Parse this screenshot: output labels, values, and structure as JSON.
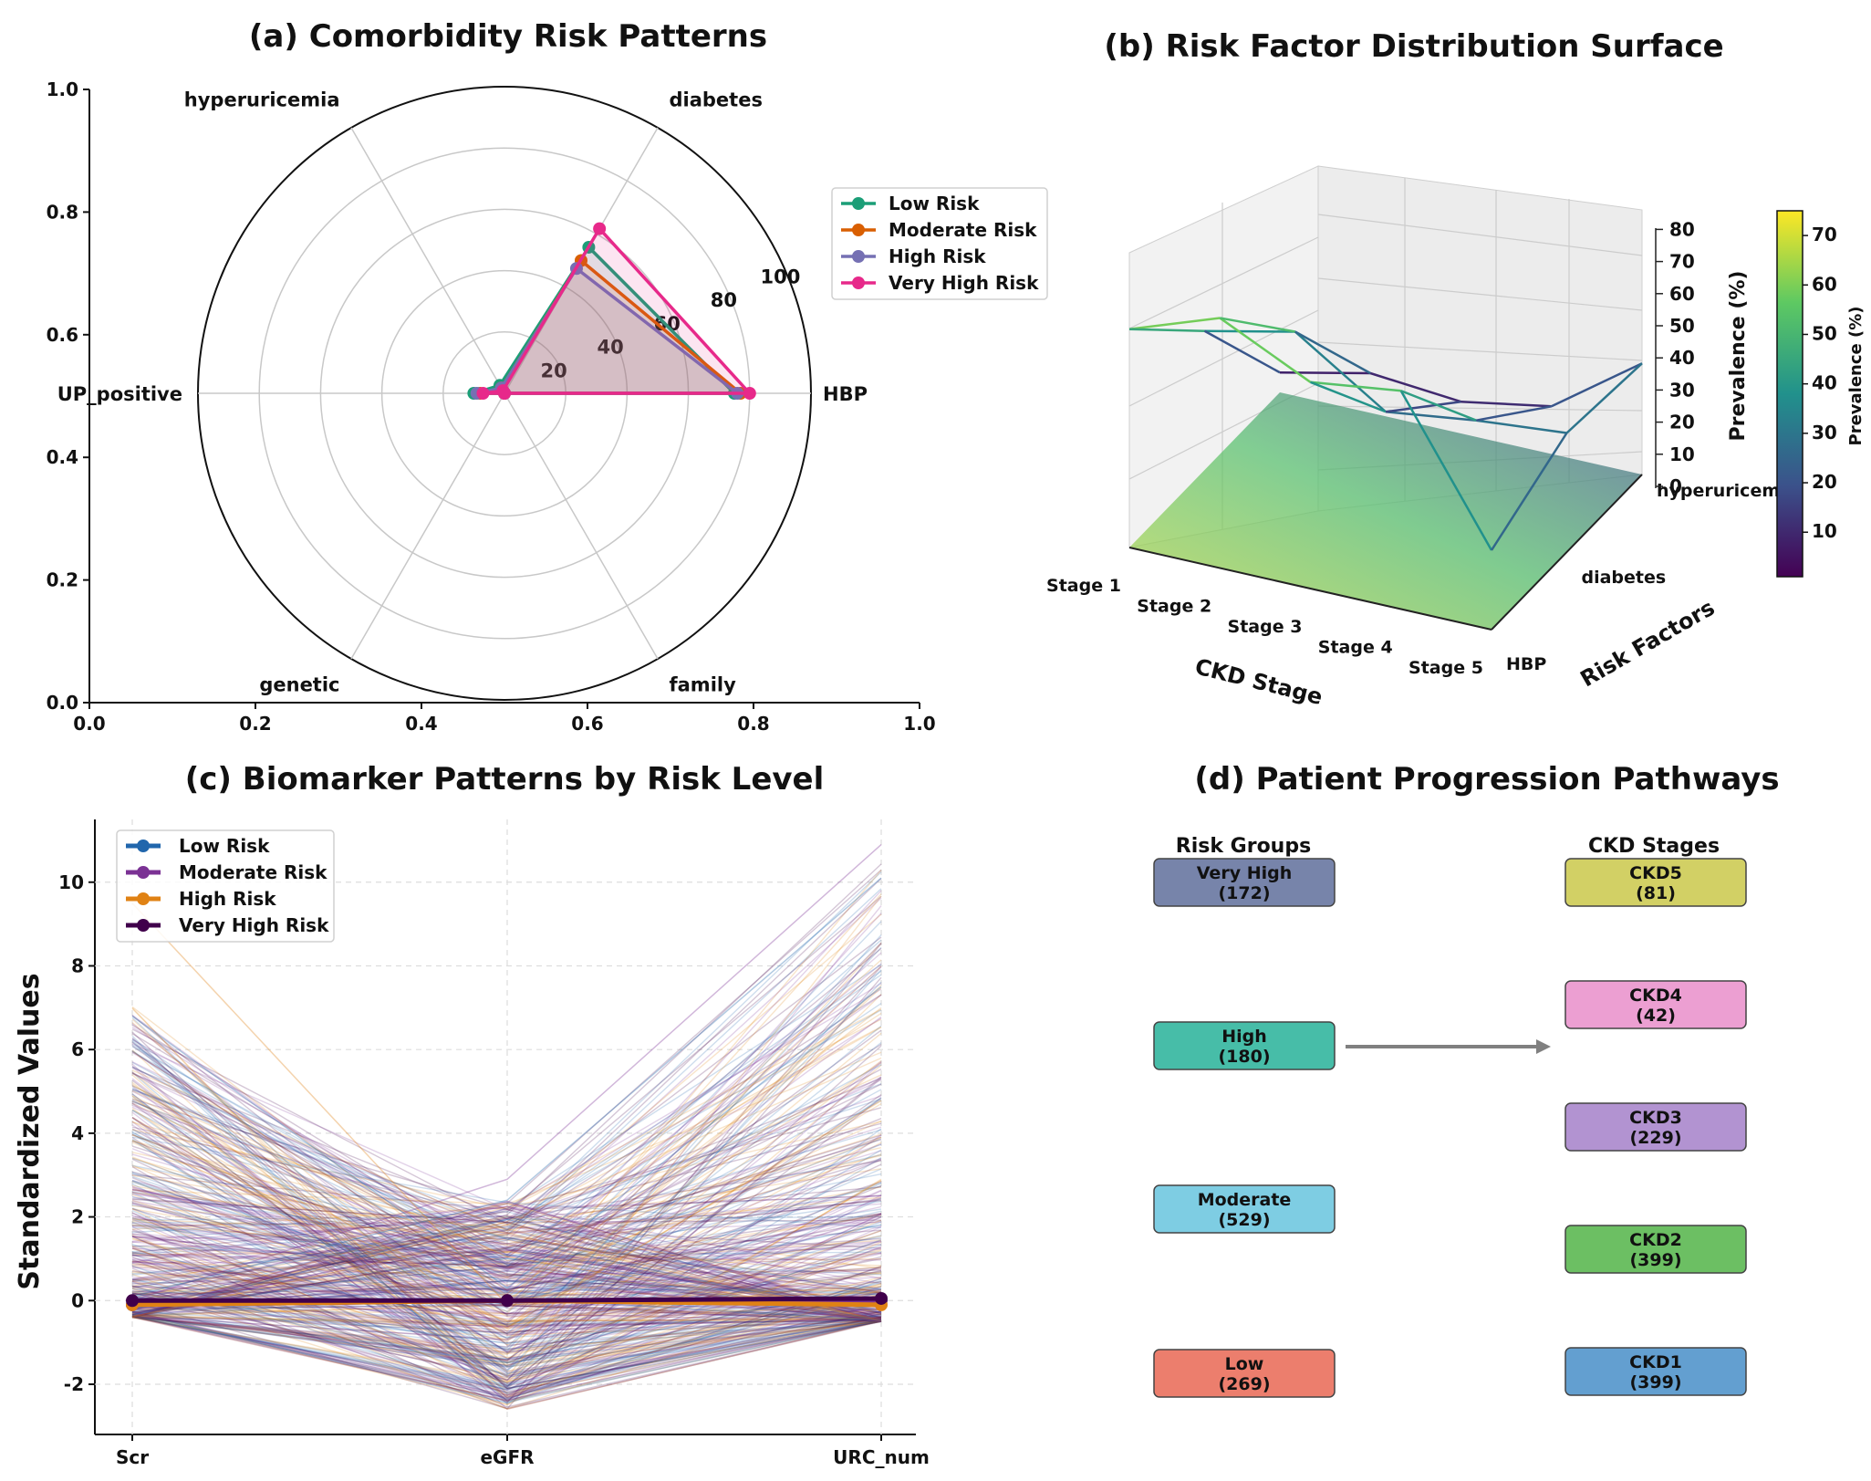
{
  "chart_data": [
    {
      "panel": "a",
      "type": "radar",
      "title": "(a) Comorbidity Risk Patterns",
      "categories": [
        "HBP",
        "diabetes",
        "hyperuricemia",
        "UP_positive",
        "genetic",
        "family"
      ],
      "r_ticks": [
        "20",
        "40",
        "60",
        "80",
        "100"
      ],
      "rlim": [
        0,
        100
      ],
      "bg_axis": {
        "xticks": [
          "0.0",
          "0.2",
          "0.4",
          "0.6",
          "0.8",
          "1.0"
        ],
        "yticks": [
          "0.0",
          "0.2",
          "0.4",
          "0.6",
          "0.8",
          "1.0"
        ]
      },
      "series": [
        {
          "name": "Low Risk",
          "color": "#1b9e77",
          "values": [
            75,
            55,
            3,
            10,
            0,
            0
          ]
        },
        {
          "name": "Moderate Risk",
          "color": "#d95f02",
          "values": [
            77,
            50,
            2,
            8,
            0,
            0
          ]
        },
        {
          "name": "High Risk",
          "color": "#7570b3",
          "values": [
            76,
            47,
            2,
            9,
            0,
            0
          ]
        },
        {
          "name": "Very High Risk",
          "color": "#e7298a",
          "values": [
            80,
            62,
            1,
            7,
            0,
            0
          ]
        }
      ],
      "legend": "right"
    },
    {
      "panel": "b",
      "type": "surface3d",
      "title": "(b) Risk Factor Distribution Surface",
      "xlabel": "CKD Stage",
      "ylabel": "Risk Factors",
      "zlabel": "Prevalence (%)",
      "x_categories": [
        "Stage 1",
        "Stage 2",
        "Stage 3",
        "Stage 4",
        "Stage 5"
      ],
      "y_categories": [
        "HBP",
        "diabetes",
        "hyperuricemia"
      ],
      "z_ticks": [
        "0",
        "10",
        "20",
        "30",
        "40",
        "50",
        "60",
        "70",
        "80"
      ],
      "zlim": [
        0,
        80
      ],
      "values": [
        [
          55,
          35,
          5
        ],
        [
          63,
          40,
          10
        ],
        [
          52,
          25,
          8
        ],
        [
          55,
          28,
          12
        ],
        [
          20,
          30,
          28
        ]
      ],
      "colorbar": {
        "label": "Prevalence (%)",
        "ticks": [
          "10",
          "20",
          "30",
          "40",
          "50",
          "60",
          "70"
        ],
        "range": [
          1,
          75
        ],
        "colormap": "viridis"
      }
    },
    {
      "panel": "c",
      "type": "parallel",
      "title": "(c) Biomarker Patterns by Risk Level",
      "axes": [
        "Scr",
        "eGFR",
        "URC_num"
      ],
      "ylabel": "Standardized Values",
      "ylim": [
        -3.2,
        11.5
      ],
      "yticks": [
        "-2",
        "0",
        "2",
        "4",
        "6",
        "8",
        "10"
      ],
      "series": [
        {
          "name": "Low Risk",
          "color": "#2166ac",
          "means": [
            -0.1,
            0.0,
            0.0
          ]
        },
        {
          "name": "Moderate Risk",
          "color": "#7b3294",
          "means": [
            -0.1,
            0.0,
            0.0
          ]
        },
        {
          "name": "High Risk",
          "color": "#e08214",
          "means": [
            -0.1,
            0.0,
            -0.1
          ]
        },
        {
          "name": "Very High Risk",
          "color": "#40004b",
          "means": [
            0.0,
            0.0,
            0.05
          ]
        }
      ],
      "legend": "top-left"
    },
    {
      "panel": "d",
      "type": "flow",
      "title": "(d) Patient Progression Pathways",
      "left_header": "Risk Groups",
      "right_header": "CKD Stages",
      "left_nodes": [
        {
          "label": "Very High",
          "count": "(172)",
          "color": "#7784aa"
        },
        {
          "label": "High",
          "count": "(180)",
          "color": "#47bda8"
        },
        {
          "label": "Moderate",
          "count": "(529)",
          "color": "#7ecde3"
        },
        {
          "label": "Low",
          "count": "(269)",
          "color": "#ec7e6d"
        }
      ],
      "right_nodes": [
        {
          "label": "CKD5",
          "count": "(81)",
          "color": "#d2d065"
        },
        {
          "label": "CKD4",
          "count": "(42)",
          "color": "#ec9fd2"
        },
        {
          "label": "CKD3",
          "count": "(229)",
          "color": "#b293d1"
        },
        {
          "label": "CKD2",
          "count": "(399)",
          "color": "#6cbf63"
        },
        {
          "label": "CKD1",
          "count": "(399)",
          "color": "#639fd0"
        }
      ],
      "edges": [
        {
          "from": "High",
          "to": "CKD4/CKD3"
        }
      ]
    }
  ]
}
